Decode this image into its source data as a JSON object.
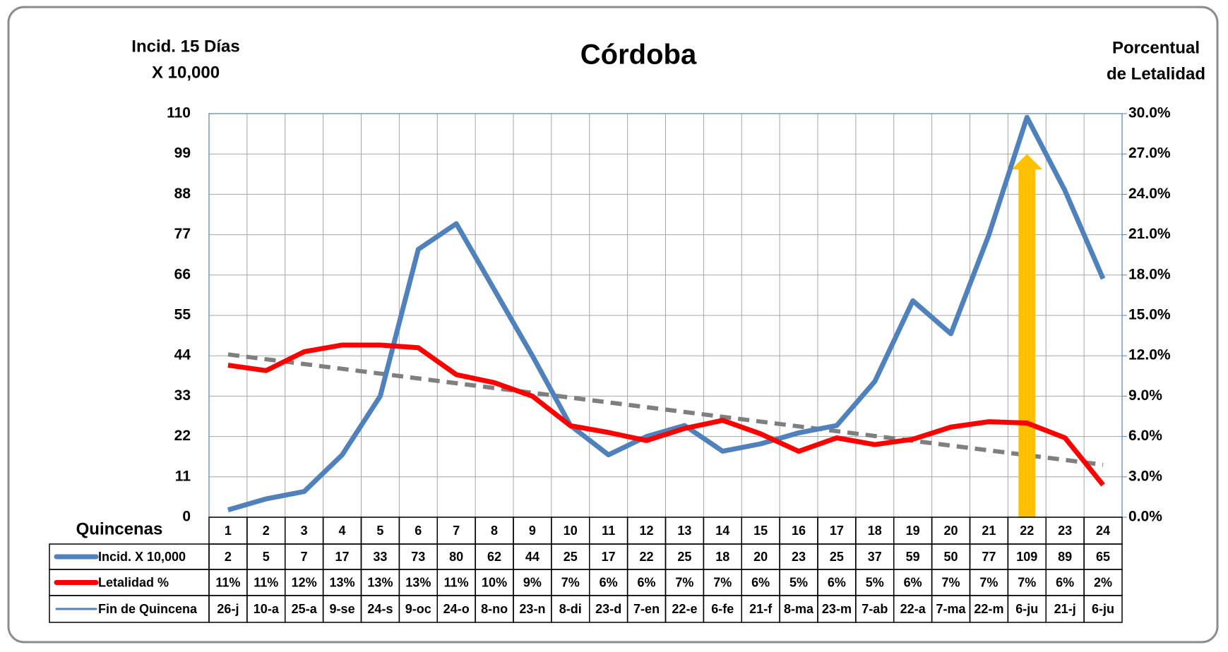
{
  "chart_data": {
    "type": "line",
    "title": "Córdoba",
    "y_label": [
      "Incid. 15 Días",
      "X 10,000"
    ],
    "y2_label": [
      "Porcentual",
      "de Letalidad"
    ],
    "x_label": "Quincenas",
    "categories": [
      "1",
      "2",
      "3",
      "4",
      "5",
      "6",
      "7",
      "8",
      "9",
      "10",
      "11",
      "12",
      "13",
      "14",
      "15",
      "16",
      "17",
      "18",
      "19",
      "20",
      "21",
      "22",
      "23",
      "24"
    ],
    "series": [
      {
        "name": "Incid. X 10,000",
        "color": "#4f81bd",
        "values": [
          2,
          5,
          7,
          17,
          33,
          73,
          80,
          62,
          44,
          25,
          17,
          22,
          25,
          18,
          20,
          23,
          25,
          37,
          59,
          50,
          77,
          109,
          89,
          65
        ]
      },
      {
        "name": "Letalidad %",
        "color": "#ff0000",
        "axis": "y2",
        "values": [
          11.3,
          10.9,
          12.3,
          12.8,
          12.8,
          12.6,
          10.6,
          10.0,
          9.0,
          6.8,
          6.3,
          5.7,
          6.6,
          7.2,
          6.2,
          4.9,
          5.9,
          5.4,
          5.8,
          6.7,
          7.1,
          7.0,
          5.9,
          2.4
        ],
        "value_labels": [
          "11%",
          "11%",
          "12%",
          "13%",
          "13%",
          "13%",
          "11%",
          "10%",
          "9%",
          "7%",
          "6%",
          "6%",
          "7%",
          "7%",
          "6%",
          "5%",
          "6%",
          "5%",
          "6%",
          "7%",
          "7%",
          "7%",
          "6%",
          "2%"
        ]
      }
    ],
    "end_dates": {
      "name": "Fin de Quincena",
      "color": "#4f81bd",
      "values": [
        "26-j",
        "10-a",
        "25-a",
        "9-se",
        "24-s",
        "9-oc",
        "24-o",
        "8-no",
        "23-n",
        "8-di",
        "23-d",
        "7-en",
        "22-e",
        "6-fe",
        "21-f",
        "8-ma",
        "23-m",
        "7-ab",
        "22-a",
        "7-ma",
        "22-m",
        "6-ju",
        "21-j",
        "6-ju"
      ]
    },
    "trendline": {
      "color": "#7f7f7f",
      "axis": "y2",
      "values": [
        12.1,
        3.9
      ]
    },
    "ylim": [
      0,
      110
    ],
    "yticks": [
      0,
      11,
      22,
      33,
      44,
      55,
      66,
      77,
      88,
      99,
      110
    ],
    "y2lim": [
      0,
      30
    ],
    "y2ticks": [
      {
        "value": 0,
        "label": "0.0%"
      },
      {
        "value": 3,
        "label": "3.0%"
      },
      {
        "value": 6,
        "label": "6.0%"
      },
      {
        "value": 9,
        "label": "9.0%"
      },
      {
        "value": 12,
        "label": "12.0%"
      },
      {
        "value": 15,
        "label": "15.0%"
      },
      {
        "value": 18,
        "label": "18.0%"
      },
      {
        "value": 21,
        "label": "21.0%"
      },
      {
        "value": 24,
        "label": "24.0%"
      },
      {
        "value": 27,
        "label": "27.0%"
      },
      {
        "value": 30,
        "label": "30.0%"
      }
    ],
    "grid": true
  }
}
